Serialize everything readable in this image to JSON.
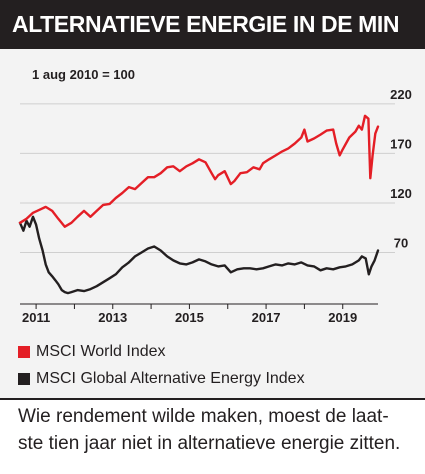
{
  "header": {
    "title": "ALTERNATIEVE ENERGIE IN DE MIN"
  },
  "caption": {
    "line1": "Wie rendement wilde maken, moest de laat-",
    "line2": "ste tien jaar niet in alternatieve energie zitten."
  },
  "colors": {
    "title_bg": "#231f20",
    "panel_bg": "#f3f3f3",
    "world": "#e41e26",
    "alt_energy": "#231f20",
    "grid": "#cfcfcf"
  },
  "chart_data": {
    "type": "line",
    "title": "",
    "xlabel": "",
    "ylabel": "",
    "base_note": "1 aug 2010 = 100",
    "y_ticks": [
      220,
      170,
      120,
      70
    ],
    "x_ticks": [
      "2011",
      "2013",
      "2015",
      "2017",
      "2019"
    ],
    "ylim": [
      18,
      235
    ],
    "xlim": [
      2010.58,
      2019.92
    ],
    "grid": true,
    "legend_position": "bottom",
    "series": [
      {
        "name": "MSCI World Index",
        "color": "#e41e26",
        "points": [
          [
            2010.58,
            100
          ],
          [
            2010.75,
            104
          ],
          [
            2010.92,
            110
          ],
          [
            2011.08,
            113
          ],
          [
            2011.25,
            116
          ],
          [
            2011.42,
            112
          ],
          [
            2011.58,
            104
          ],
          [
            2011.75,
            96
          ],
          [
            2011.92,
            100
          ],
          [
            2012.08,
            106
          ],
          [
            2012.25,
            112
          ],
          [
            2012.42,
            106
          ],
          [
            2012.58,
            112
          ],
          [
            2012.75,
            118
          ],
          [
            2012.92,
            119
          ],
          [
            2013.08,
            125
          ],
          [
            2013.25,
            130
          ],
          [
            2013.42,
            136
          ],
          [
            2013.58,
            134
          ],
          [
            2013.75,
            140
          ],
          [
            2013.92,
            146
          ],
          [
            2014.08,
            146
          ],
          [
            2014.25,
            150
          ],
          [
            2014.42,
            156
          ],
          [
            2014.58,
            157
          ],
          [
            2014.75,
            152
          ],
          [
            2014.92,
            157
          ],
          [
            2015.08,
            160
          ],
          [
            2015.25,
            164
          ],
          [
            2015.42,
            161
          ],
          [
            2015.58,
            150
          ],
          [
            2015.67,
            144
          ],
          [
            2015.75,
            148
          ],
          [
            2015.92,
            152
          ],
          [
            2016.08,
            139
          ],
          [
            2016.17,
            142
          ],
          [
            2016.33,
            150
          ],
          [
            2016.5,
            151
          ],
          [
            2016.67,
            156
          ],
          [
            2016.83,
            154
          ],
          [
            2016.92,
            160
          ],
          [
            2017.08,
            164
          ],
          [
            2017.25,
            168
          ],
          [
            2017.42,
            172
          ],
          [
            2017.58,
            175
          ],
          [
            2017.75,
            180
          ],
          [
            2017.92,
            186
          ],
          [
            2018.0,
            194
          ],
          [
            2018.08,
            182
          ],
          [
            2018.25,
            185
          ],
          [
            2018.42,
            189
          ],
          [
            2018.58,
            193
          ],
          [
            2018.75,
            194
          ],
          [
            2018.83,
            180
          ],
          [
            2018.92,
            168
          ],
          [
            2019.0,
            174
          ],
          [
            2019.17,
            186
          ],
          [
            2019.33,
            192
          ],
          [
            2019.42,
            198
          ],
          [
            2019.5,
            194
          ],
          [
            2019.58,
            208
          ],
          [
            2019.67,
            205
          ],
          [
            2019.72,
            145
          ],
          [
            2019.78,
            168
          ],
          [
            2019.85,
            190
          ],
          [
            2019.92,
            197
          ]
        ]
      },
      {
        "name": "MSCI Global Alternative Energy Index",
        "color": "#231f20",
        "points": [
          [
            2010.58,
            100
          ],
          [
            2010.67,
            92
          ],
          [
            2010.75,
            102
          ],
          [
            2010.83,
            96
          ],
          [
            2010.92,
            106
          ],
          [
            2011.0,
            98
          ],
          [
            2011.08,
            84
          ],
          [
            2011.17,
            72
          ],
          [
            2011.25,
            58
          ],
          [
            2011.33,
            50
          ],
          [
            2011.42,
            46
          ],
          [
            2011.5,
            42
          ],
          [
            2011.58,
            38
          ],
          [
            2011.67,
            32
          ],
          [
            2011.75,
            30
          ],
          [
            2011.83,
            29
          ],
          [
            2011.92,
            30
          ],
          [
            2012.08,
            32
          ],
          [
            2012.25,
            31
          ],
          [
            2012.42,
            33
          ],
          [
            2012.58,
            36
          ],
          [
            2012.75,
            40
          ],
          [
            2012.92,
            44
          ],
          [
            2013.08,
            48
          ],
          [
            2013.25,
            55
          ],
          [
            2013.42,
            60
          ],
          [
            2013.58,
            66
          ],
          [
            2013.75,
            70
          ],
          [
            2013.92,
            74
          ],
          [
            2014.08,
            76
          ],
          [
            2014.25,
            72
          ],
          [
            2014.42,
            66
          ],
          [
            2014.58,
            62
          ],
          [
            2014.75,
            59
          ],
          [
            2014.92,
            58
          ],
          [
            2015.08,
            60
          ],
          [
            2015.25,
            63
          ],
          [
            2015.42,
            61
          ],
          [
            2015.58,
            58
          ],
          [
            2015.75,
            56
          ],
          [
            2015.92,
            57
          ],
          [
            2016.08,
            50
          ],
          [
            2016.25,
            53
          ],
          [
            2016.42,
            54
          ],
          [
            2016.58,
            54
          ],
          [
            2016.75,
            53
          ],
          [
            2016.92,
            54
          ],
          [
            2017.08,
            56
          ],
          [
            2017.25,
            58
          ],
          [
            2017.42,
            57
          ],
          [
            2017.58,
            59
          ],
          [
            2017.75,
            58
          ],
          [
            2017.92,
            60
          ],
          [
            2018.08,
            57
          ],
          [
            2018.25,
            56
          ],
          [
            2018.42,
            52
          ],
          [
            2018.58,
            54
          ],
          [
            2018.75,
            53
          ],
          [
            2018.92,
            55
          ],
          [
            2019.08,
            56
          ],
          [
            2019.25,
            58
          ],
          [
            2019.42,
            62
          ],
          [
            2019.5,
            66
          ],
          [
            2019.6,
            64
          ],
          [
            2019.68,
            48
          ],
          [
            2019.75,
            56
          ],
          [
            2019.83,
            62
          ],
          [
            2019.92,
            72
          ]
        ]
      }
    ]
  }
}
